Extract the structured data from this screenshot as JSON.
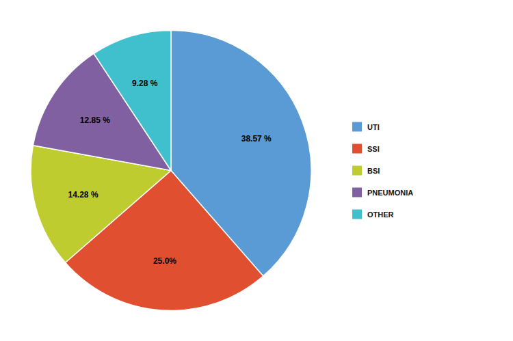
{
  "chart_data": {
    "type": "pie",
    "categories": [
      "UTI",
      "SSI",
      "BSI",
      "PNEUMONIA",
      "OTHER"
    ],
    "values": [
      38.57,
      25.0,
      14.28,
      12.85,
      9.28
    ],
    "value_labels": [
      "38.57 %",
      "25.0%",
      "14.28 %",
      "12.85 %",
      "9.28 %"
    ],
    "colors": [
      "#5B9BD5",
      "#E05030",
      "#BFCC30",
      "#8060A0",
      "#40C0CC"
    ],
    "data_labels": true,
    "legend": "right"
  }
}
